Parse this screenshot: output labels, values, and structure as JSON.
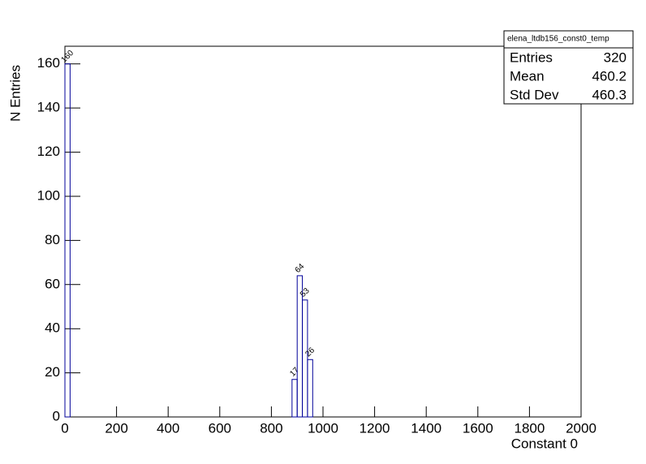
{
  "chart_data": {
    "type": "histogram",
    "xlabel": "Constant 0",
    "ylabel": "N Entries",
    "bins": [
      0,
      20,
      40,
      60,
      80,
      100,
      120,
      140,
      160,
      180,
      200,
      220,
      240,
      260,
      280,
      300,
      320,
      340,
      360,
      380,
      400,
      420,
      440,
      460,
      480,
      500,
      520,
      540,
      560,
      580,
      600,
      620,
      640,
      660,
      680,
      700,
      720,
      740,
      760,
      780,
      800,
      820,
      840,
      860,
      880,
      900,
      920,
      940,
      960,
      980,
      1000,
      1020,
      1040,
      1060,
      1080,
      1100,
      1120,
      1140,
      1160,
      1180,
      1200,
      1220,
      1240,
      1260,
      1280,
      1300,
      1320,
      1340,
      1360,
      1380,
      1400,
      1420,
      1440,
      1460,
      1480,
      1500,
      1520,
      1540,
      1560,
      1580,
      1600,
      1620,
      1640,
      1660,
      1680,
      1700,
      1720,
      1740,
      1760,
      1780,
      1800,
      1820,
      1840,
      1860,
      1880,
      1900,
      1920,
      1940,
      1960,
      1980,
      2000
    ],
    "counts": [
      160,
      0,
      0,
      0,
      0,
      0,
      0,
      0,
      0,
      0,
      0,
      0,
      0,
      0,
      0,
      0,
      0,
      0,
      0,
      0,
      0,
      0,
      0,
      0,
      0,
      0,
      0,
      0,
      0,
      0,
      0,
      0,
      0,
      0,
      0,
      0,
      0,
      0,
      0,
      0,
      0,
      0,
      0,
      0,
      17,
      64,
      53,
      26,
      0,
      0,
      0,
      0,
      0,
      0,
      0,
      0,
      0,
      0,
      0,
      0,
      0,
      0,
      0,
      0,
      0,
      0,
      0,
      0,
      0,
      0,
      0,
      0,
      0,
      0,
      0,
      0,
      0,
      0,
      0,
      0,
      0,
      0,
      0,
      0,
      0,
      0,
      0,
      0,
      0,
      0,
      0,
      0,
      0,
      0,
      0,
      0,
      0,
      0,
      0,
      0
    ],
    "color": "#000099",
    "xlim": [
      0,
      2000
    ],
    "ylim": [
      0,
      168
    ],
    "xticks": [
      0,
      200,
      400,
      600,
      800,
      1000,
      1200,
      1400,
      1600,
      1800,
      2000
    ],
    "yticks": [
      0,
      20,
      40,
      60,
      80,
      100,
      120,
      140,
      160
    ],
    "stats": {
      "title": "elena_ltdb156_const0_temp",
      "rows": [
        [
          "Entries",
          "320"
        ],
        [
          "Mean",
          "460.2"
        ],
        [
          "Std Dev",
          "460.3"
        ]
      ]
    }
  }
}
